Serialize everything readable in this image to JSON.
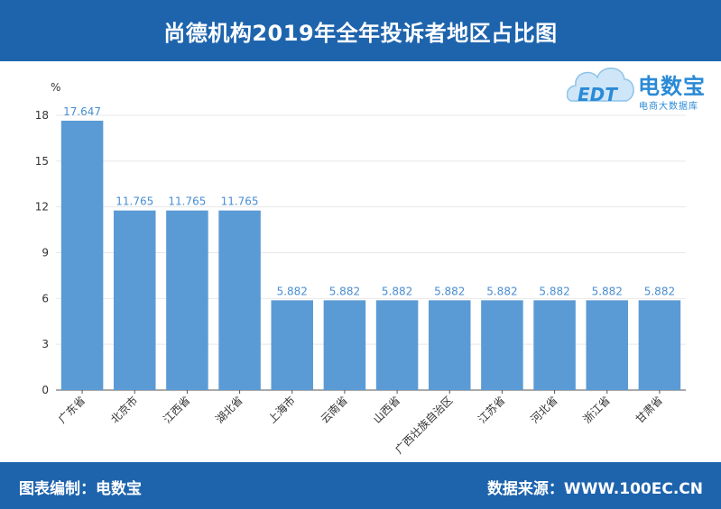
{
  "header": {
    "title": "尚德机构2019年全年投诉者地区占比图"
  },
  "logo": {
    "brand": "电数宝",
    "tagline": "电商大数据库",
    "badge": "EDT",
    "accent": "#2a8ad6"
  },
  "footer": {
    "left": "图表编制：电数宝",
    "right": "数据来源：WWW.100EC.CN"
  },
  "colors": {
    "header_bg": "#1e64ad",
    "bar": "#5b9bd5",
    "data_label": "#4a8ed0"
  },
  "chart_data": {
    "type": "bar",
    "title": "尚德机构2019年全年投诉者地区占比图",
    "ylabel": "%",
    "xlabel": "",
    "ylim": [
      0,
      18
    ],
    "yticks": [
      0,
      3,
      6,
      9,
      12,
      15,
      18
    ],
    "grid": true,
    "categories": [
      "广东省",
      "北京市",
      "江西省",
      "湖北省",
      "上海市",
      "云南省",
      "山西省",
      "广西壮族自治区",
      "江苏省",
      "河北省",
      "浙江省",
      "甘肃省"
    ],
    "values": [
      17.647,
      11.765,
      11.765,
      11.765,
      5.882,
      5.882,
      5.882,
      5.882,
      5.882,
      5.882,
      5.882,
      5.882
    ],
    "value_labels": [
      "17.647",
      "11.765",
      "11.765",
      "11.765",
      "5.882",
      "5.882",
      "5.882",
      "5.882",
      "5.882",
      "5.882",
      "5.882",
      "5.882"
    ]
  }
}
